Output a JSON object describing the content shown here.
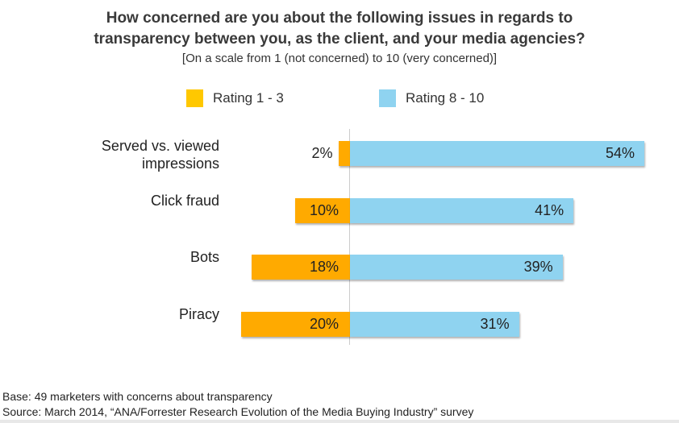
{
  "chart_data": {
    "type": "bar",
    "title": "How concerned are you about the following issues in regards to transparency between you, as the client, and your media agencies?",
    "title_lines": [
      "How concerned are you about the following issues in regards to",
      "transparency between you, as the client, and your media agencies?"
    ],
    "subtitle": "[On a scale from 1 (not concerned) to 10 (very concerned)]",
    "categories": [
      [
        "Served vs. viewed",
        "impressions"
      ],
      [
        "Click fraud"
      ],
      [
        "Bots"
      ],
      [
        "Piracy"
      ]
    ],
    "series": [
      {
        "name": "Rating 1 - 3",
        "color": "#FFAA00",
        "values": [
          2,
          10,
          18,
          20
        ]
      },
      {
        "name": "Rating 8 - 10",
        "color": "#8FD3F0",
        "values": [
          54,
          41,
          39,
          31
        ]
      }
    ],
    "unit": "%",
    "legend": "top"
  },
  "footer": {
    "base": "Base: 49 marketers with concerns about  transparency",
    "source": "Source: March 2014, “ANA/Forrester Research  Evolution of the Media Buying Industry” survey"
  }
}
